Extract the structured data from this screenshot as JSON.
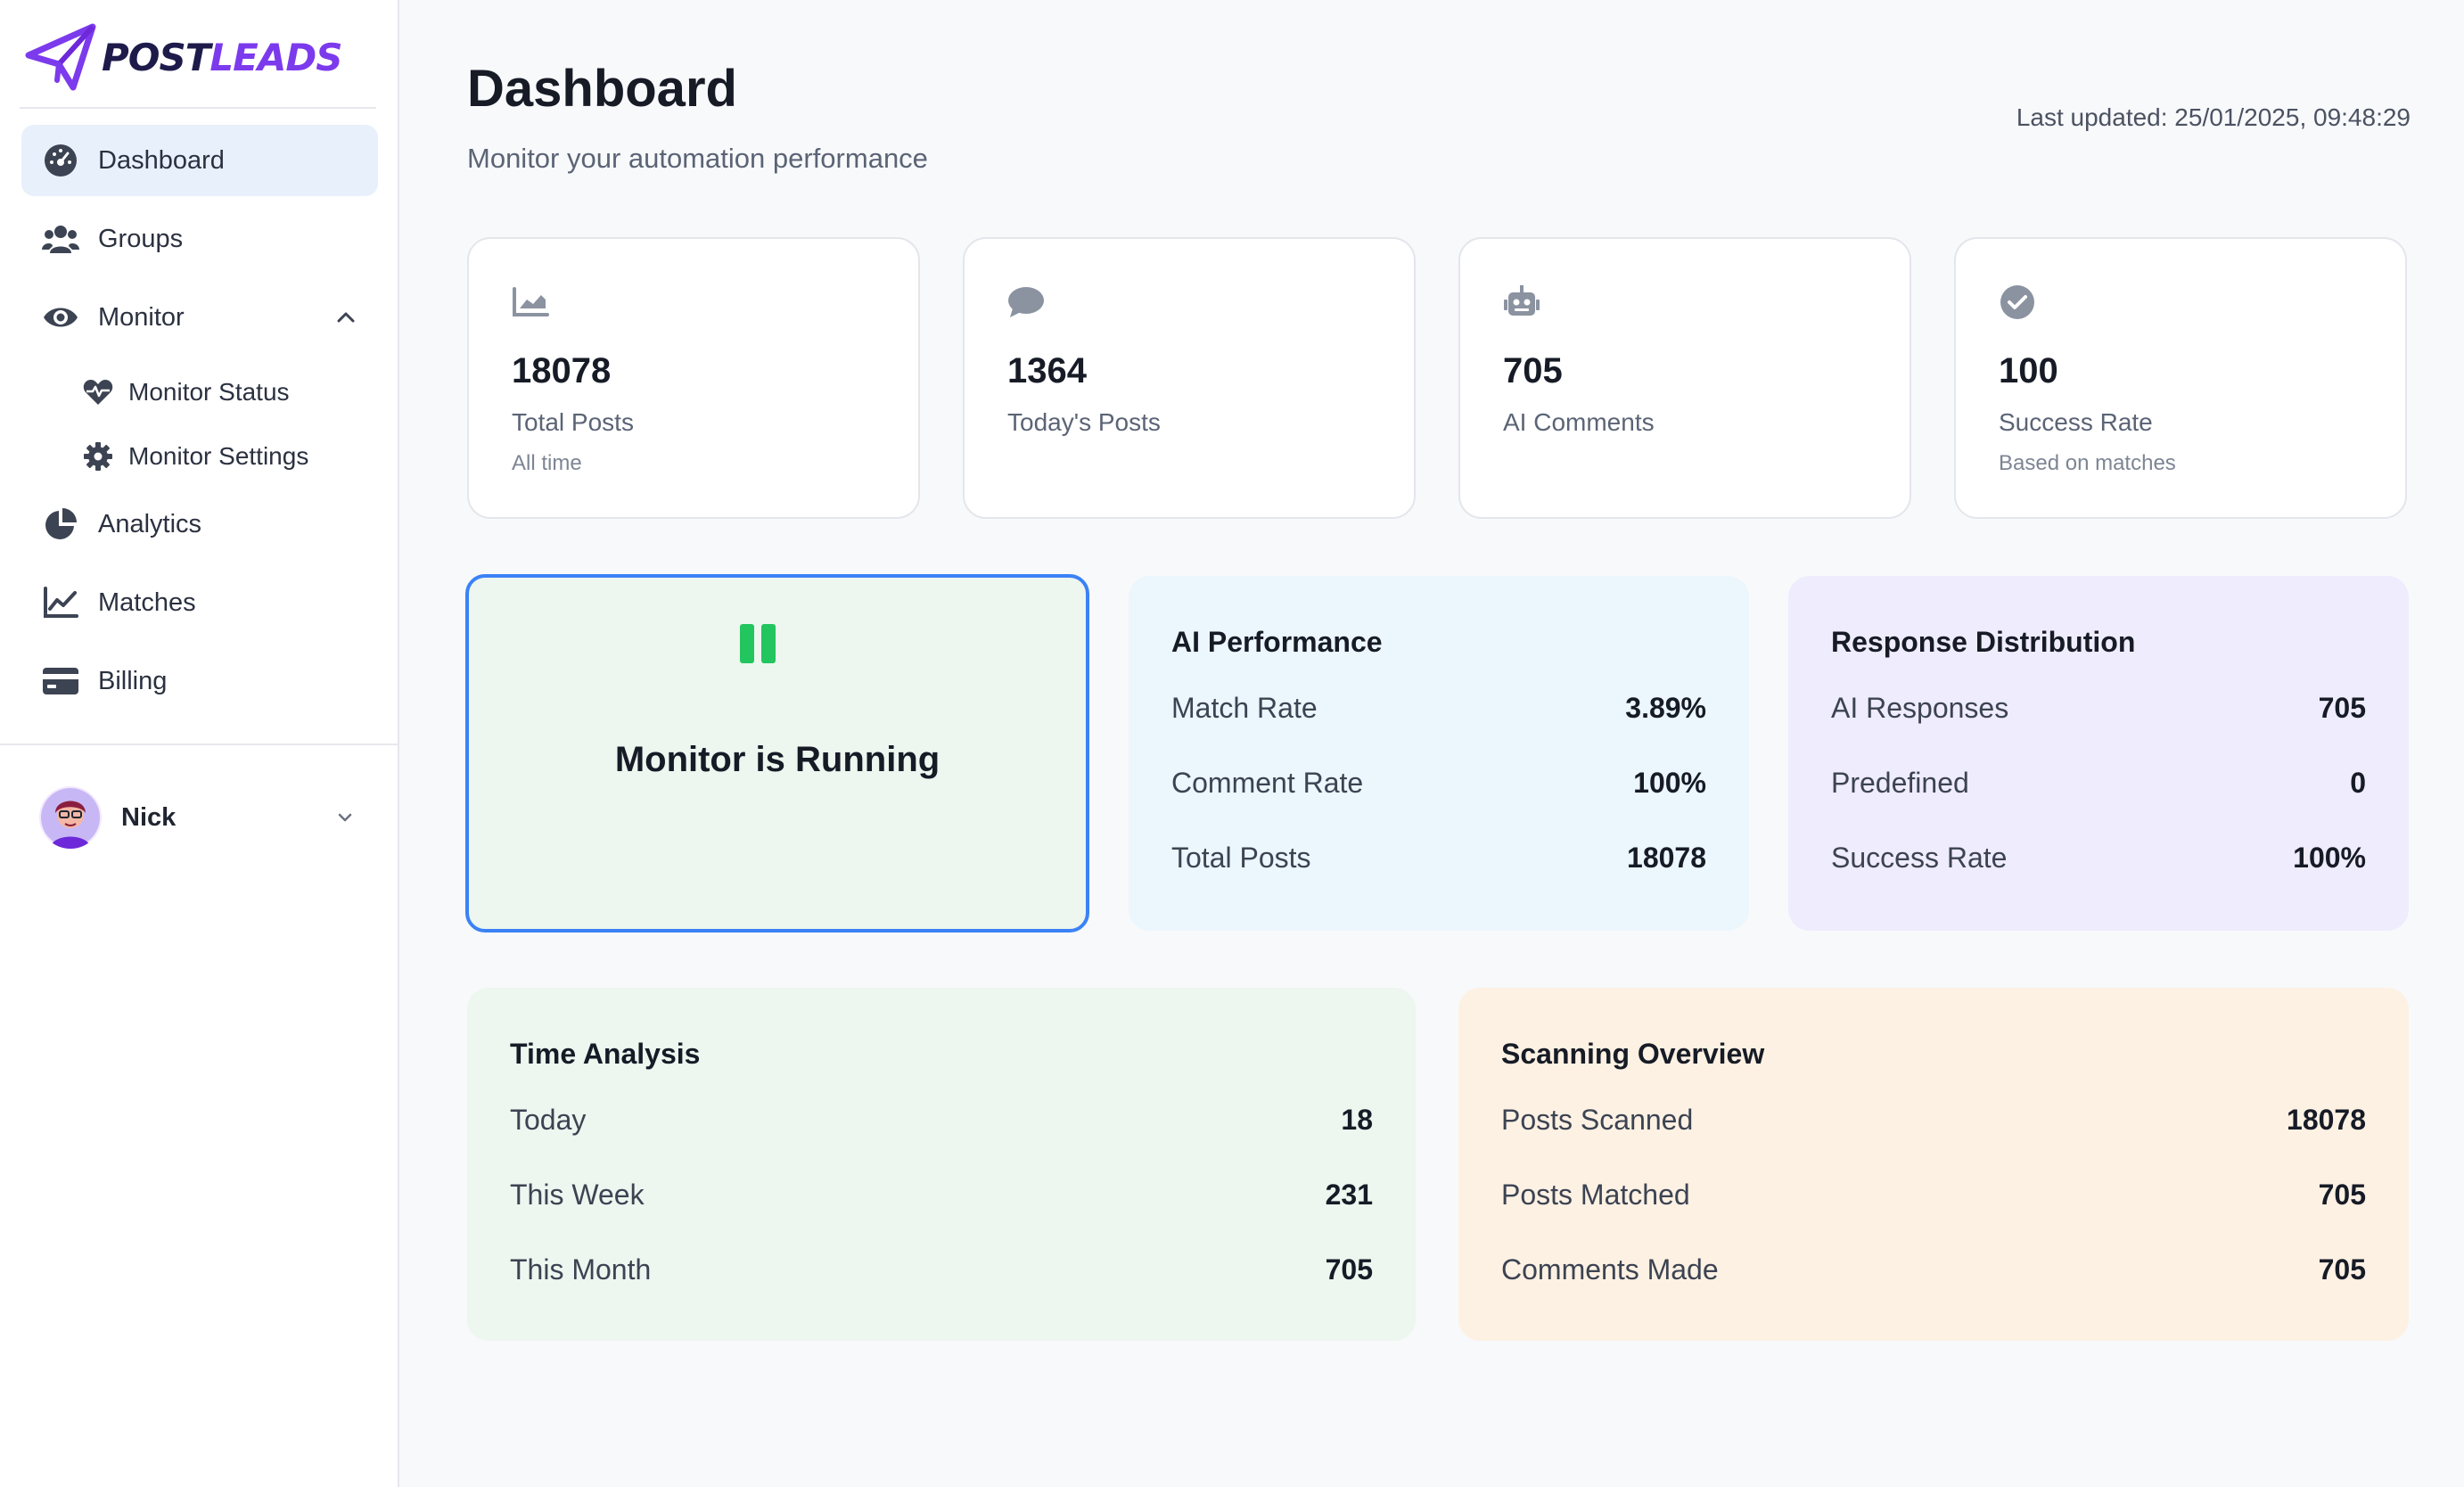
{
  "brand": {
    "post": "POST",
    "leads": "LEADS",
    "colors": {
      "dark": "#1e1b4b",
      "accent": "#7c3aed"
    }
  },
  "sidebar": {
    "items": [
      {
        "label": "Dashboard",
        "icon": "gauge-icon",
        "active": true
      },
      {
        "label": "Groups",
        "icon": "users-icon"
      },
      {
        "label": "Monitor",
        "icon": "eye-icon",
        "expanded": true
      },
      {
        "label": "Analytics",
        "icon": "pie-chart-icon"
      },
      {
        "label": "Matches",
        "icon": "line-chart-icon"
      },
      {
        "label": "Billing",
        "icon": "credit-card-icon"
      }
    ],
    "monitor_sub": [
      {
        "label": "Monitor Status",
        "icon": "heartbeat-icon"
      },
      {
        "label": "Monitor Settings",
        "icon": "gear-icon"
      }
    ],
    "user": {
      "name": "Nick"
    }
  },
  "header": {
    "title": "Dashboard",
    "subtitle": "Monitor your automation performance",
    "last_updated": "Last updated: 25/01/2025, 09:48:29"
  },
  "stats": [
    {
      "value": "18078",
      "label": "Total Posts",
      "note": "All time",
      "icon": "trend-chart-icon"
    },
    {
      "value": "1364",
      "label": "Today's Posts",
      "note": "",
      "icon": "comment-icon"
    },
    {
      "value": "705",
      "label": "AI Comments",
      "note": "",
      "icon": "robot-icon"
    },
    {
      "value": "100",
      "label": "Success Rate",
      "note": "Based on matches",
      "icon": "check-circle-icon"
    }
  ],
  "monitor": {
    "status": "Monitor is Running",
    "icon": "pause-icon",
    "color": "#22c55e"
  },
  "ai_performance": {
    "title": "AI Performance",
    "rows": [
      {
        "k": "Match Rate",
        "v": "3.89%"
      },
      {
        "k": "Comment Rate",
        "v": "100%"
      },
      {
        "k": "Total Posts",
        "v": "18078"
      }
    ]
  },
  "response_distribution": {
    "title": "Response Distribution",
    "rows": [
      {
        "k": "AI Responses",
        "v": "705"
      },
      {
        "k": "Predefined",
        "v": "0"
      },
      {
        "k": "Success Rate",
        "v": "100%"
      }
    ]
  },
  "time_analysis": {
    "title": "Time Analysis",
    "rows": [
      {
        "k": "Today",
        "v": "18"
      },
      {
        "k": "This Week",
        "v": "231"
      },
      {
        "k": "This Month",
        "v": "705"
      }
    ]
  },
  "scanning_overview": {
    "title": "Scanning Overview",
    "rows": [
      {
        "k": "Posts Scanned",
        "v": "18078"
      },
      {
        "k": "Posts Matched",
        "v": "705"
      },
      {
        "k": "Comments Made",
        "v": "705"
      }
    ]
  }
}
